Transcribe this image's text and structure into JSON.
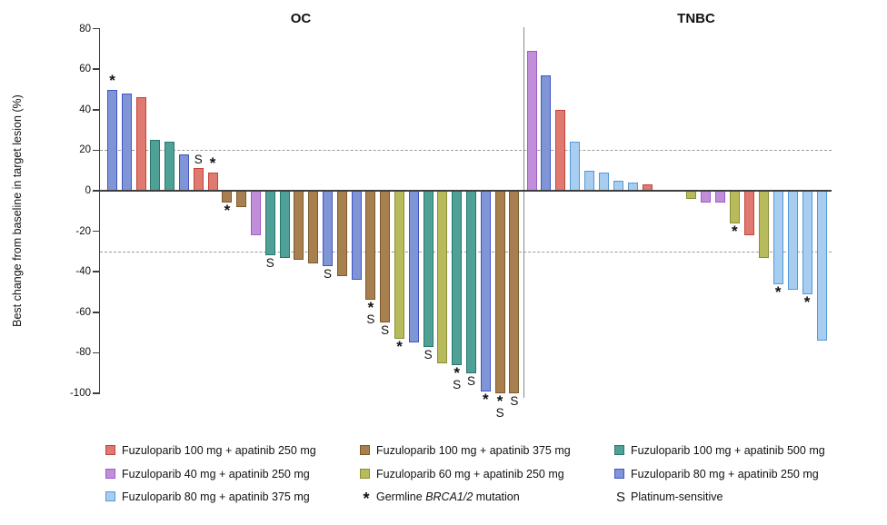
{
  "chart_data": {
    "type": "bar",
    "subtype": "waterfall",
    "title": "",
    "xlabel": "",
    "ylabel": "Best change from baseline in target lesion (%)",
    "ylim": [
      -100,
      80
    ],
    "yticks": [
      80,
      60,
      40,
      20,
      0,
      -20,
      -40,
      -60,
      -80,
      -100
    ],
    "reference_lines": [
      20,
      -30
    ],
    "grid": "off",
    "legend_position": "bottom",
    "arms": {
      "F100_A250": {
        "label": "Fuzuloparib 100 mg + apatinib 250 mg",
        "fill": "#E0796F",
        "border": "#C2443B"
      },
      "F100_A375": {
        "label": "Fuzuloparib 100 mg + apatinib 375 mg",
        "fill": "#A8804F",
        "border": "#7B5A2E"
      },
      "F100_A500": {
        "label": "Fuzuloparib 100 mg + apatinib 500 mg",
        "fill": "#4FA096",
        "border": "#27776B"
      },
      "F40_A250": {
        "label": "Fuzuloparib 40 mg + apatinib 250 mg",
        "fill": "#C18FD9",
        "border": "#A259C9"
      },
      "F60_A250": {
        "label": "Fuzuloparib 60 mg + apatinib 250 mg",
        "fill": "#B7BB5B",
        "border": "#8A8E38"
      },
      "F80_A250": {
        "label": "Fuzuloparib 80 mg + apatinib 250 mg",
        "fill": "#8095D6",
        "border": "#4254C5"
      },
      "F80_A375": {
        "label": "Fuzuloparib 80 mg + apatinib 375 mg",
        "fill": "#A7CDF0",
        "border": "#5499D6"
      }
    },
    "markers": {
      "brca": {
        "symbol": "*",
        "label_prefix": "Germline ",
        "label_italic": "BRCA1/2",
        "label_suffix": " mutation"
      },
      "platinum": {
        "symbol": "S",
        "label": "Platinum-sensitive"
      }
    },
    "legend_columns": [
      [
        "F100_A250",
        "F40_A250",
        "F80_A375"
      ],
      [
        "F100_A375",
        "F60_A250",
        "@brca"
      ],
      [
        "F100_A500",
        "F80_A250",
        "@platinum"
      ]
    ],
    "groups": [
      {
        "name": "OC",
        "bars": [
          {
            "value": 50,
            "arm": "F80_A250",
            "brca": true
          },
          {
            "value": 48,
            "arm": "F80_A250"
          },
          {
            "value": 46,
            "arm": "F100_A250"
          },
          {
            "value": 25,
            "arm": "F100_A500"
          },
          {
            "value": 24,
            "arm": "F100_A500"
          },
          {
            "value": 18,
            "arm": "F80_A250"
          },
          {
            "value": 11,
            "arm": "F100_A250",
            "platinum": true
          },
          {
            "value": 9,
            "arm": "F100_A250",
            "brca": true
          },
          {
            "value": -6,
            "arm": "F100_A375",
            "brca": true
          },
          {
            "value": -8,
            "arm": "F100_A375"
          },
          {
            "value": -22,
            "arm": "F40_A250"
          },
          {
            "value": -32,
            "arm": "F100_A500",
            "platinum": true
          },
          {
            "value": -33,
            "arm": "F100_A500"
          },
          {
            "value": -34,
            "arm": "F100_A375"
          },
          {
            "value": -36,
            "arm": "F100_A375"
          },
          {
            "value": -37,
            "arm": "F80_A250",
            "platinum": true
          },
          {
            "value": -42,
            "arm": "F100_A375"
          },
          {
            "value": -44,
            "arm": "F80_A250"
          },
          {
            "value": -54,
            "arm": "F100_A375",
            "brca": true,
            "platinum": true
          },
          {
            "value": -65,
            "arm": "F100_A375",
            "platinum": true
          },
          {
            "value": -73,
            "arm": "F60_A250",
            "brca": true
          },
          {
            "value": -75,
            "arm": "F80_A250"
          },
          {
            "value": -77,
            "arm": "F100_A500",
            "platinum": true
          },
          {
            "value": -85,
            "arm": "F60_A250"
          },
          {
            "value": -86,
            "arm": "F100_A500",
            "brca": true,
            "platinum": true
          },
          {
            "value": -90,
            "arm": "F100_A500",
            "platinum": true
          },
          {
            "value": -99,
            "arm": "F80_A250",
            "brca": true
          },
          {
            "value": -100,
            "arm": "F100_A375",
            "brca": true,
            "platinum": true
          },
          {
            "value": -100,
            "arm": "F100_A375",
            "platinum": true
          }
        ]
      },
      {
        "name": "TNBC",
        "bars": [
          {
            "value": 69,
            "arm": "F40_A250"
          },
          {
            "value": 57,
            "arm": "F80_A250"
          },
          {
            "value": 40,
            "arm": "F100_A250"
          },
          {
            "value": 24,
            "arm": "F80_A375"
          },
          {
            "value": 10,
            "arm": "F80_A375"
          },
          {
            "value": 9,
            "arm": "F80_A375"
          },
          {
            "value": 5,
            "arm": "F80_A375"
          },
          {
            "value": 4,
            "arm": "F80_A375"
          },
          {
            "value": 3,
            "arm": "F100_A250"
          },
          {
            "gap": true
          },
          {
            "gap": true
          },
          {
            "value": -4,
            "arm": "F60_A250"
          },
          {
            "value": -6,
            "arm": "F40_A250"
          },
          {
            "value": -6,
            "arm": "F40_A250"
          },
          {
            "value": -16,
            "arm": "F60_A250",
            "brca": true
          },
          {
            "value": -22,
            "arm": "F100_A250"
          },
          {
            "value": -33,
            "arm": "F60_A250"
          },
          {
            "value": -46,
            "arm": "F80_A375",
            "brca": true
          },
          {
            "value": -49,
            "arm": "F80_A375"
          },
          {
            "value": -51,
            "arm": "F80_A375",
            "brca": true
          },
          {
            "value": -74,
            "arm": "F80_A375"
          }
        ]
      }
    ]
  }
}
